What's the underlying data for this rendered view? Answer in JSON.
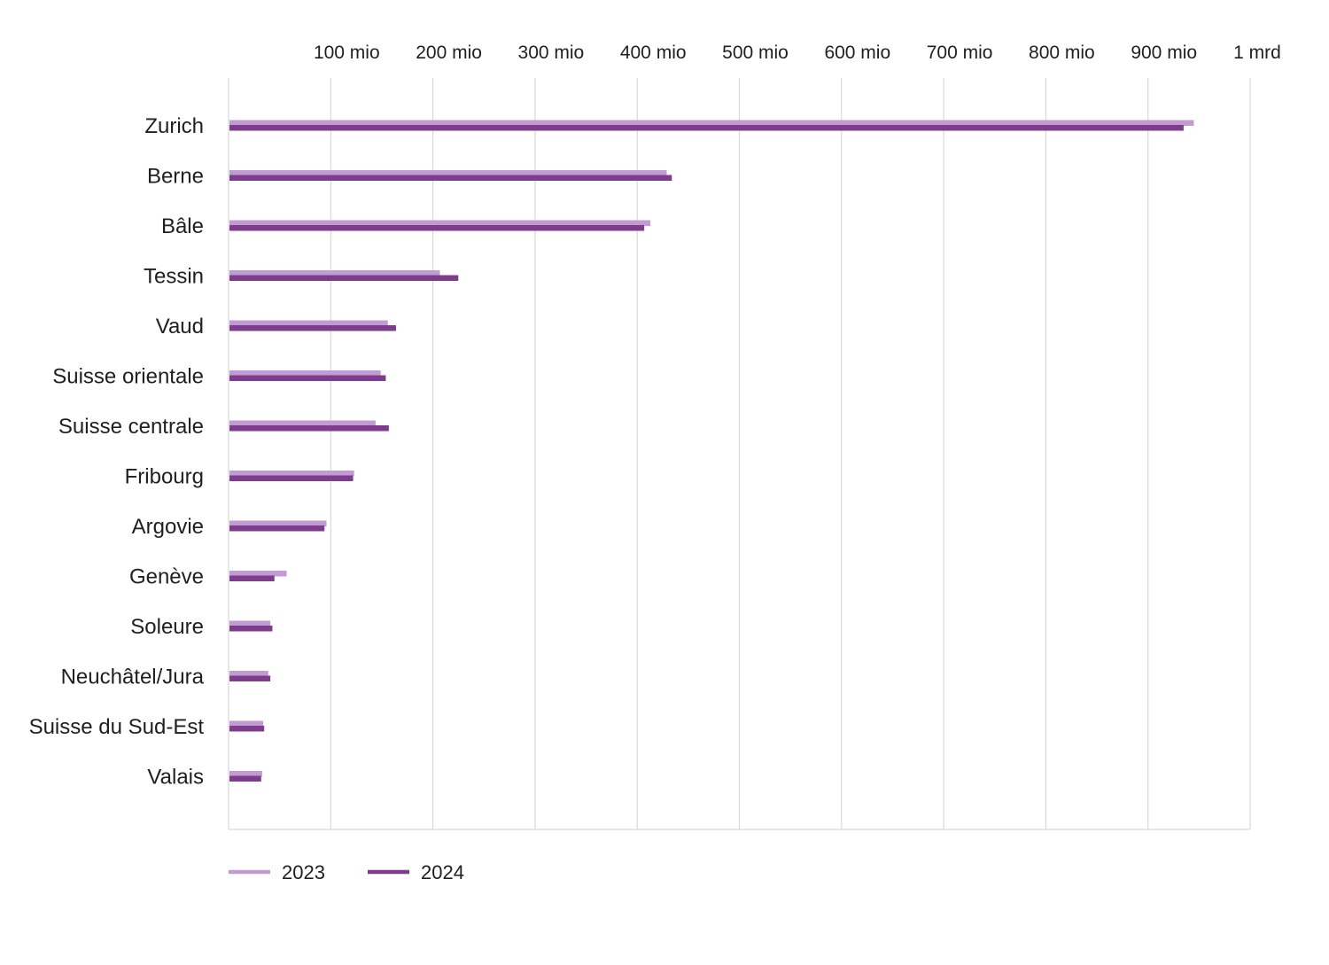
{
  "chart_data": {
    "type": "bar",
    "orientation": "horizontal",
    "categories": [
      "Zurich",
      "Berne",
      "Bâle",
      "Tessin",
      "Vaud",
      "Suisse orientale",
      "Suisse centrale",
      "Fribourg",
      "Argovie",
      "Genève",
      "Soleure",
      "Neuchâtel/Jura",
      "Suisse du Sud-Est",
      "Valais"
    ],
    "series": [
      {
        "name": "2023",
        "color": "#c39bd3",
        "values": [
          944,
          428,
          412,
          206,
          155,
          148,
          143,
          122,
          95,
          56,
          40,
          38,
          33,
          32
        ]
      },
      {
        "name": "2024",
        "color": "#7d3c8c",
        "values": [
          934,
          433,
          406,
          224,
          163,
          153,
          156,
          121,
          93,
          44,
          42,
          40,
          34,
          31
        ]
      }
    ],
    "x_ticks": [
      {
        "value": 100,
        "label": "100 mio"
      },
      {
        "value": 200,
        "label": "200 mio"
      },
      {
        "value": 300,
        "label": "300 mio"
      },
      {
        "value": 400,
        "label": "400 mio"
      },
      {
        "value": 500,
        "label": "500 mio"
      },
      {
        "value": 600,
        "label": "600 mio"
      },
      {
        "value": 700,
        "label": "700 mio"
      },
      {
        "value": 800,
        "label": "800 mio"
      },
      {
        "value": 900,
        "label": "900 mio"
      },
      {
        "value": 1000,
        "label": "1 mrd"
      }
    ],
    "xlim": [
      0,
      1000
    ],
    "grid": true,
    "x_axis_position": "top",
    "legend_position": "bottom-left",
    "gridline_color": "#d9d9d9",
    "text_color": "#1f1f1f"
  }
}
